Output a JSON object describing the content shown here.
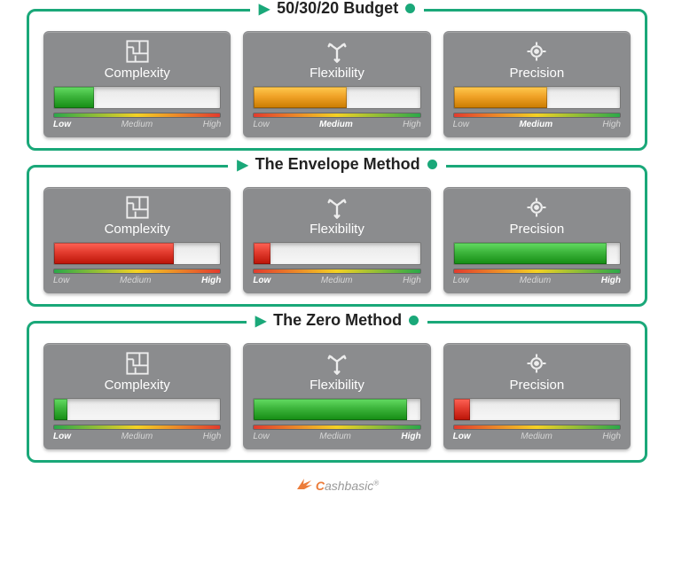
{
  "colors": {
    "border": "#1aa879",
    "card_bg": "#8b8c8e",
    "text_light": "#ffffff",
    "logo_orange": "#ec7c3a"
  },
  "scale": {
    "low": "Low",
    "medium": "Medium",
    "high": "High"
  },
  "metrics": {
    "complexity": {
      "label": "Complexity",
      "icon": "maze",
      "spectrum": [
        "#2aa84a",
        "#f4d224",
        "#e23b2e"
      ]
    },
    "flexibility": {
      "label": "Flexibility",
      "icon": "directions",
      "spectrum": [
        "#e23b2e",
        "#f4d224",
        "#2aa84a"
      ]
    },
    "precision": {
      "label": "Precision",
      "icon": "target",
      "spectrum": [
        "#e23b2e",
        "#f4d224",
        "#2aa84a"
      ]
    }
  },
  "methods": [
    {
      "title": "50/30/20 Budget",
      "values": {
        "complexity": {
          "percent": 24,
          "fill_color": "#3cb43b",
          "level": "low"
        },
        "flexibility": {
          "percent": 56,
          "fill_color": "#f0a227",
          "level": "medium"
        },
        "precision": {
          "percent": 56,
          "fill_color": "#f0a227",
          "level": "medium"
        }
      }
    },
    {
      "title": "The Envelope Method",
      "values": {
        "complexity": {
          "percent": 72,
          "fill_color": "#e23b2e",
          "level": "high"
        },
        "flexibility": {
          "percent": 10,
          "fill_color": "#e23b2e",
          "level": "low"
        },
        "precision": {
          "percent": 92,
          "fill_color": "#3cb43b",
          "level": "high"
        }
      }
    },
    {
      "title": "The Zero Method",
      "values": {
        "complexity": {
          "percent": 8,
          "fill_color": "#3cb43b",
          "level": "low"
        },
        "flexibility": {
          "percent": 92,
          "fill_color": "#3cb43b",
          "level": "high"
        },
        "precision": {
          "percent": 10,
          "fill_color": "#e23b2e",
          "level": "low"
        }
      }
    }
  ],
  "logo": {
    "first": "C",
    "rest": "ashbasic",
    "reg": "®"
  }
}
